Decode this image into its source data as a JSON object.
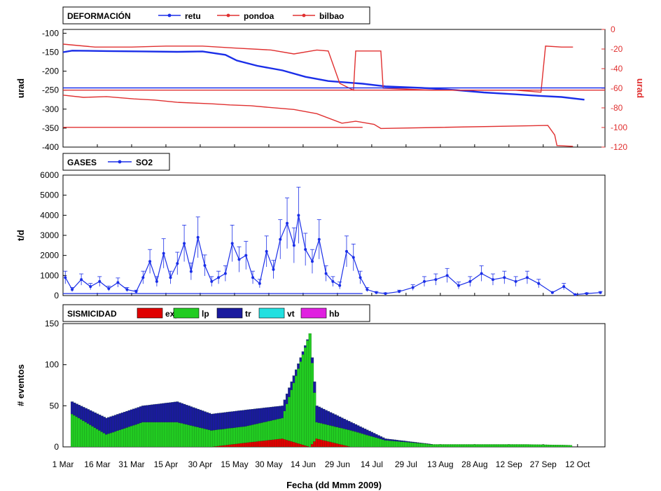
{
  "chart_data": [
    {
      "type": "line",
      "panel": "deformacion",
      "legend_title": "DEFORMACIÓN",
      "ylabel": "urad",
      "ylabel_right": "urad",
      "ylim": [
        -400,
        -90
      ],
      "yticks": [
        -100,
        -150,
        -200,
        -250,
        -300,
        -350,
        -400
      ],
      "ylim_right": [
        -120,
        0
      ],
      "yticks_right": [
        0,
        -20,
        -40,
        -60,
        -80,
        -100,
        -120
      ],
      "grid": false,
      "legend_position": "top-left",
      "x_range": [
        "2009-03-01",
        "2009-10-24"
      ],
      "series": [
        {
          "name": "retu",
          "color": "#1a2ee8",
          "axis": "left",
          "points": [
            [
              "2009-03-01",
              -150
            ],
            [
              "2009-03-05",
              -146
            ],
            [
              "2009-03-20",
              -147
            ],
            [
              "2009-04-05",
              -148
            ],
            [
              "2009-04-20",
              -149
            ],
            [
              "2009-05-01",
              -148
            ],
            [
              "2009-05-11",
              -157
            ],
            [
              "2009-05-16",
              -172
            ],
            [
              "2009-05-25",
              -186
            ],
            [
              "2009-06-05",
              -198
            ],
            [
              "2009-06-15",
              -215
            ],
            [
              "2009-06-25",
              -226
            ],
            [
              "2009-07-10",
              -233
            ],
            [
              "2009-07-20",
              -240
            ],
            [
              "2009-08-05",
              -244
            ],
            [
              "2009-08-20",
              -250
            ],
            [
              "2009-09-01",
              -256
            ],
            [
              "2009-09-15",
              -261
            ],
            [
              "2009-09-25",
              -265
            ],
            [
              "2009-10-05",
              -268
            ],
            [
              "2009-10-15",
              -275
            ]
          ]
        },
        {
          "name": "pondoa",
          "color": "#e03030",
          "axis": "right",
          "points": [
            [
              "2009-03-01",
              -15
            ],
            [
              "2009-03-15",
              -18
            ],
            [
              "2009-03-31",
              -18
            ],
            [
              "2009-04-15",
              -17
            ],
            [
              "2009-05-01",
              -17
            ],
            [
              "2009-05-15",
              -19
            ],
            [
              "2009-05-31",
              -21
            ],
            [
              "2009-06-10",
              -25
            ],
            [
              "2009-06-20",
              -21
            ],
            [
              "2009-06-25",
              -22
            ],
            [
              "2009-06-30",
              -55
            ],
            [
              "2009-07-06",
              -62
            ],
            [
              "2009-07-07",
              -22
            ],
            [
              "2009-07-18",
              -22
            ],
            [
              "2009-07-19",
              -60
            ],
            [
              "2009-08-10",
              -62
            ],
            [
              "2009-08-28",
              -62
            ],
            [
              "2009-09-15",
              -62
            ],
            [
              "2009-09-26",
              -64
            ],
            [
              "2009-09-28",
              -17
            ],
            [
              "2009-10-05",
              -18
            ],
            [
              "2009-10-10",
              -18
            ]
          ]
        },
        {
          "name": "bilbao",
          "color": "#e03030",
          "axis": "left",
          "points": [
            [
              "2009-03-01",
              -263
            ],
            [
              "2009-03-10",
              -269
            ],
            [
              "2009-03-20",
              -267
            ],
            [
              "2009-04-01",
              -273
            ],
            [
              "2009-04-10",
              -276
            ],
            [
              "2009-04-20",
              -282
            ],
            [
              "2009-05-05",
              -286
            ],
            [
              "2009-05-13",
              -289
            ],
            [
              "2009-05-22",
              -291
            ],
            [
              "2009-05-31",
              -296
            ],
            [
              "2009-06-10",
              -301
            ],
            [
              "2009-06-20",
              -312
            ],
            [
              "2009-07-01",
              -337
            ],
            [
              "2009-07-07",
              -332
            ],
            [
              "2009-07-15",
              -340
            ],
            [
              "2009-07-18",
              -351
            ],
            [
              "2009-09-29",
              -343
            ],
            [
              "2009-10-02",
              -368
            ],
            [
              "2009-10-03",
              -396
            ],
            [
              "2009-10-10",
              -398
            ]
          ]
        },
        {
          "name": "",
          "color": "#1a2ee8",
          "axis": "left",
          "points": [
            [
              "2009-03-01",
              -244
            ],
            [
              "2009-10-24",
              -244
            ]
          ]
        },
        {
          "name": "",
          "color": "#e03030",
          "axis": "left",
          "points": [
            [
              "2009-03-01",
              -250
            ],
            [
              "2009-10-24",
              -250
            ]
          ]
        },
        {
          "name": "",
          "color": "#e03030",
          "axis": "left",
          "points": [
            [
              "2009-03-01",
              -348
            ],
            [
              "2009-07-10",
              -348
            ]
          ]
        }
      ]
    },
    {
      "type": "line",
      "panel": "gases",
      "legend_title": "GASES",
      "ylabel": "t/d",
      "ylim": [
        0,
        6000
      ],
      "yticks": [
        0,
        1000,
        2000,
        3000,
        4000,
        5000,
        6000
      ],
      "grid": false,
      "legend_position": "top-left",
      "x_range": [
        "2009-03-01",
        "2009-10-24"
      ],
      "series": [
        {
          "name": "SO2",
          "color": "#1a2ee8",
          "error_bars": true,
          "points": [
            [
              "2009-03-02",
              900
            ],
            [
              "2009-03-05",
              300
            ],
            [
              "2009-03-09",
              800
            ],
            [
              "2009-03-13",
              450
            ],
            [
              "2009-03-17",
              700
            ],
            [
              "2009-03-21",
              350
            ],
            [
              "2009-03-25",
              650
            ],
            [
              "2009-03-29",
              300
            ],
            [
              "2009-04-02",
              200
            ],
            [
              "2009-04-05",
              900
            ],
            [
              "2009-04-08",
              1700
            ],
            [
              "2009-04-11",
              700
            ],
            [
              "2009-04-14",
              2100
            ],
            [
              "2009-04-17",
              900
            ],
            [
              "2009-04-20",
              1600
            ],
            [
              "2009-04-23",
              2600
            ],
            [
              "2009-04-26",
              1200
            ],
            [
              "2009-04-29",
              2900
            ],
            [
              "2009-05-02",
              1500
            ],
            [
              "2009-05-05",
              700
            ],
            [
              "2009-05-08",
              900
            ],
            [
              "2009-05-11",
              1100
            ],
            [
              "2009-05-14",
              2600
            ],
            [
              "2009-05-17",
              1800
            ],
            [
              "2009-05-20",
              2000
            ],
            [
              "2009-05-23",
              900
            ],
            [
              "2009-05-26",
              600
            ],
            [
              "2009-05-29",
              2200
            ],
            [
              "2009-06-01",
              1300
            ],
            [
              "2009-06-04",
              2800
            ],
            [
              "2009-06-07",
              3600
            ],
            [
              "2009-06-10",
              2500
            ],
            [
              "2009-06-12",
              4000
            ],
            [
              "2009-06-15",
              2300
            ],
            [
              "2009-06-18",
              1700
            ],
            [
              "2009-06-21",
              2800
            ],
            [
              "2009-06-24",
              1100
            ],
            [
              "2009-06-27",
              700
            ],
            [
              "2009-06-30",
              500
            ],
            [
              "2009-07-03",
              2200
            ],
            [
              "2009-07-06",
              1900
            ],
            [
              "2009-07-09",
              900
            ],
            [
              "2009-07-12",
              300
            ],
            [
              "2009-07-16",
              150
            ],
            [
              "2009-07-20",
              100
            ],
            [
              "2009-07-26",
              200
            ],
            [
              "2009-08-01",
              400
            ],
            [
              "2009-08-06",
              700
            ],
            [
              "2009-08-11",
              800
            ],
            [
              "2009-08-16",
              1000
            ],
            [
              "2009-08-21",
              500
            ],
            [
              "2009-08-26",
              700
            ],
            [
              "2009-08-31",
              1100
            ],
            [
              "2009-09-05",
              800
            ],
            [
              "2009-09-10",
              900
            ],
            [
              "2009-09-15",
              700
            ],
            [
              "2009-09-20",
              900
            ],
            [
              "2009-09-25",
              600
            ],
            [
              "2009-10-01",
              150
            ],
            [
              "2009-10-06",
              450
            ],
            [
              "2009-10-11",
              50
            ],
            [
              "2009-10-16",
              100
            ],
            [
              "2009-10-22",
              150
            ]
          ]
        },
        {
          "name": "",
          "color": "#1a2ee8",
          "error_bars": false,
          "points": [
            [
              "2009-03-01",
              100
            ],
            [
              "2009-07-10",
              100
            ]
          ]
        }
      ]
    },
    {
      "type": "bar",
      "panel": "sismicidad",
      "legend_title": "SISMICIDAD",
      "xlabel": "Fecha (dd Mmm 2009)",
      "ylabel": "# eventos",
      "ylim": [
        0,
        150
      ],
      "yticks": [
        0,
        50,
        100,
        150
      ],
      "stacked": true,
      "grid": false,
      "legend_position": "top-left",
      "x_range": [
        "2009-03-01",
        "2009-10-24"
      ],
      "x_tick_labels": [
        "1 Mar",
        "16 Mar",
        "31 Mar",
        "15 Apr",
        "30 Apr",
        "15 May",
        "30 May",
        "14 Jun",
        "29 Jun",
        "14 Jul",
        "29 Jul",
        "13 Aug",
        "28 Aug",
        "12 Sep",
        "27 Sep",
        "12 Oct"
      ],
      "series": [
        {
          "name": "exp",
          "color": "#e00000"
        },
        {
          "name": "lp",
          "color": "#22cc22"
        },
        {
          "name": "tr",
          "color": "#1a1a9e"
        },
        {
          "name": "vt",
          "color": "#22e0e0"
        },
        {
          "name": "hb",
          "color": "#e020e0"
        }
      ],
      "points_by_date": [
        [
          "2009-03-05",
          0,
          40,
          15
        ],
        [
          "2009-03-20",
          0,
          15,
          20
        ],
        [
          "2009-04-05",
          0,
          30,
          20
        ],
        [
          "2009-04-20",
          0,
          30,
          25
        ],
        [
          "2009-05-05",
          0,
          20,
          20
        ],
        [
          "2009-05-20",
          5,
          20,
          20
        ],
        [
          "2009-06-05",
          10,
          25,
          15
        ],
        [
          "2009-06-17",
          0,
          138,
          0
        ],
        [
          "2009-06-20",
          10,
          20,
          20
        ],
        [
          "2009-07-05",
          0,
          20,
          10
        ],
        [
          "2009-07-20",
          0,
          8,
          2
        ],
        [
          "2009-08-10",
          0,
          3,
          0
        ],
        [
          "2009-09-01",
          0,
          3,
          0
        ],
        [
          "2009-09-20",
          0,
          3,
          0
        ],
        [
          "2009-10-10",
          0,
          2,
          0
        ]
      ]
    }
  ]
}
